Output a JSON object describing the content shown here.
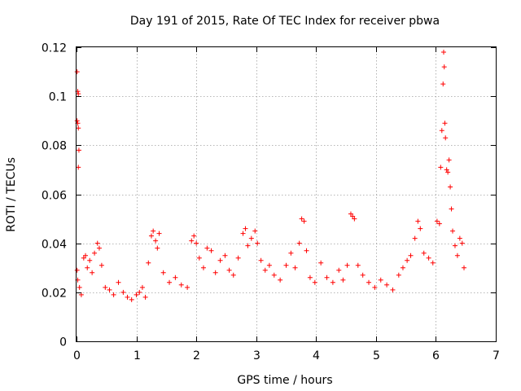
{
  "chart_data": {
    "type": "scatter",
    "title": "Day 191 of 2015, Rate Of TEC Index for receiver pbwa",
    "xlabel": "GPS time / hours",
    "ylabel": "ROTI / TECUs",
    "xlim": [
      0,
      7
    ],
    "ylim": [
      0,
      0.12
    ],
    "xticks": [
      "0",
      "1",
      "2",
      "3",
      "4",
      "5",
      "6",
      "7"
    ],
    "yticks": [
      "0",
      "0.02",
      "0.04",
      "0.06",
      "0.08",
      "0.1",
      "0.12"
    ],
    "grid": true,
    "marker": "plus",
    "color": "#ff0000",
    "series": [
      {
        "name": "ROTI",
        "points": [
          [
            0.01,
            0.11
          ],
          [
            0.02,
            0.102
          ],
          [
            0.03,
            0.101
          ],
          [
            0.01,
            0.09
          ],
          [
            0.02,
            0.089
          ],
          [
            0.03,
            0.087
          ],
          [
            0.04,
            0.078
          ],
          [
            0.03,
            0.071
          ],
          [
            0.01,
            0.029
          ],
          [
            0.02,
            0.025
          ],
          [
            0.05,
            0.022
          ],
          [
            0.08,
            0.019
          ],
          [
            0.12,
            0.034
          ],
          [
            0.15,
            0.035
          ],
          [
            0.18,
            0.03
          ],
          [
            0.22,
            0.033
          ],
          [
            0.26,
            0.028
          ],
          [
            0.3,
            0.036
          ],
          [
            0.35,
            0.04
          ],
          [
            0.38,
            0.038
          ],
          [
            0.42,
            0.031
          ],
          [
            0.48,
            0.022
          ],
          [
            0.55,
            0.021
          ],
          [
            0.62,
            0.019
          ],
          [
            0.7,
            0.024
          ],
          [
            0.78,
            0.02
          ],
          [
            0.85,
            0.018
          ],
          [
            0.92,
            0.017
          ],
          [
            1.0,
            0.019
          ],
          [
            1.05,
            0.02
          ],
          [
            1.1,
            0.022
          ],
          [
            1.15,
            0.018
          ],
          [
            1.2,
            0.032
          ],
          [
            1.25,
            0.043
          ],
          [
            1.28,
            0.045
          ],
          [
            1.32,
            0.041
          ],
          [
            1.35,
            0.038
          ],
          [
            1.38,
            0.044
          ],
          [
            1.45,
            0.028
          ],
          [
            1.55,
            0.024
          ],
          [
            1.65,
            0.026
          ],
          [
            1.75,
            0.023
          ],
          [
            1.85,
            0.022
          ],
          [
            1.92,
            0.041
          ],
          [
            1.96,
            0.043
          ],
          [
            2.0,
            0.04
          ],
          [
            2.05,
            0.034
          ],
          [
            2.12,
            0.03
          ],
          [
            2.18,
            0.038
          ],
          [
            2.25,
            0.037
          ],
          [
            2.32,
            0.028
          ],
          [
            2.4,
            0.033
          ],
          [
            2.48,
            0.035
          ],
          [
            2.55,
            0.029
          ],
          [
            2.62,
            0.027
          ],
          [
            2.7,
            0.034
          ],
          [
            2.78,
            0.044
          ],
          [
            2.82,
            0.046
          ],
          [
            2.86,
            0.039
          ],
          [
            2.92,
            0.042
          ],
          [
            2.98,
            0.045
          ],
          [
            3.02,
            0.04
          ],
          [
            3.08,
            0.033
          ],
          [
            3.15,
            0.029
          ],
          [
            3.22,
            0.031
          ],
          [
            3.3,
            0.027
          ],
          [
            3.4,
            0.025
          ],
          [
            3.5,
            0.031
          ],
          [
            3.58,
            0.036
          ],
          [
            3.65,
            0.03
          ],
          [
            3.72,
            0.04
          ],
          [
            3.76,
            0.05
          ],
          [
            3.8,
            0.049
          ],
          [
            3.84,
            0.037
          ],
          [
            3.9,
            0.026
          ],
          [
            3.98,
            0.024
          ],
          [
            4.08,
            0.032
          ],
          [
            4.18,
            0.026
          ],
          [
            4.28,
            0.024
          ],
          [
            4.38,
            0.029
          ],
          [
            4.45,
            0.025
          ],
          [
            4.52,
            0.031
          ],
          [
            4.58,
            0.052
          ],
          [
            4.61,
            0.051
          ],
          [
            4.64,
            0.05
          ],
          [
            4.7,
            0.031
          ],
          [
            4.78,
            0.027
          ],
          [
            4.88,
            0.024
          ],
          [
            4.98,
            0.022
          ],
          [
            5.08,
            0.025
          ],
          [
            5.18,
            0.023
          ],
          [
            5.28,
            0.021
          ],
          [
            5.38,
            0.027
          ],
          [
            5.45,
            0.03
          ],
          [
            5.52,
            0.033
          ],
          [
            5.58,
            0.035
          ],
          [
            5.65,
            0.042
          ],
          [
            5.7,
            0.049
          ],
          [
            5.74,
            0.046
          ],
          [
            5.8,
            0.036
          ],
          [
            5.88,
            0.034
          ],
          [
            5.95,
            0.032
          ],
          [
            6.02,
            0.049
          ],
          [
            6.06,
            0.048
          ],
          [
            6.08,
            0.071
          ],
          [
            6.1,
            0.086
          ],
          [
            6.12,
            0.105
          ],
          [
            6.13,
            0.118
          ],
          [
            6.14,
            0.112
          ],
          [
            6.15,
            0.089
          ],
          [
            6.16,
            0.083
          ],
          [
            6.18,
            0.07
          ],
          [
            6.2,
            0.069
          ],
          [
            6.22,
            0.074
          ],
          [
            6.24,
            0.063
          ],
          [
            6.26,
            0.054
          ],
          [
            6.28,
            0.045
          ],
          [
            6.32,
            0.039
          ],
          [
            6.36,
            0.035
          ],
          [
            6.4,
            0.042
          ],
          [
            6.44,
            0.04
          ],
          [
            6.47,
            0.03
          ]
        ]
      }
    ]
  }
}
